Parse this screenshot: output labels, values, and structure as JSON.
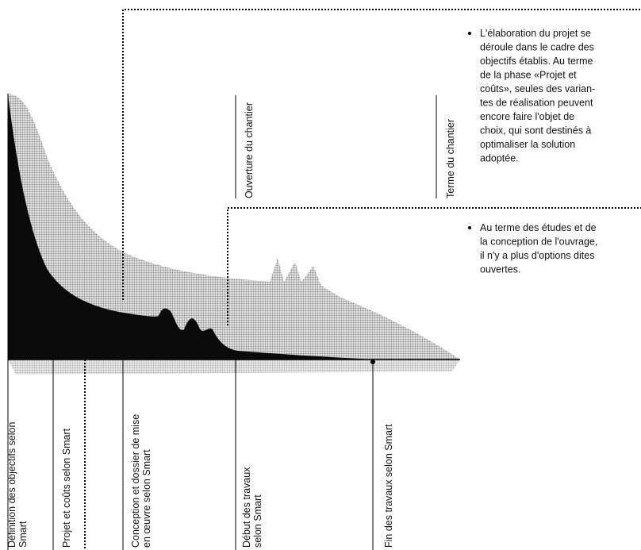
{
  "bullets": [
    {
      "lines": [
        "L'élaboration du projet se",
        "déroule dans le cadre des",
        "objectifs établis. Au terme",
        "de la phase «Projet et",
        "coûts», seules des varian-",
        "tes de réalisation peuvent",
        "encore faire l'objet de",
        "choix, qui sont destinés à",
        "optimaliser la solution",
        "adoptée."
      ]
    },
    {
      "lines": [
        "Au terme des études et de",
        "la conception de l'ouvrage,",
        "il n'y a plus d'options dites",
        "ouvertes."
      ]
    }
  ],
  "top_labels": [
    "Ouverture du chantier",
    "Terme du chantier"
  ],
  "bottom_labels": [
    {
      "lines": [
        "Définition des objectifs selon",
        "Smart"
      ]
    },
    {
      "lines": [
        "Projet et coûts selon Smart"
      ]
    },
    {
      "lines": [
        "Conception et dossier de mise",
        "en œuvre selon Smart"
      ]
    },
    {
      "lines": [
        "Début des travaux",
        "selon Smart"
      ]
    },
    {
      "lines": [
        "Fin des travaux selon Smart"
      ]
    }
  ]
}
